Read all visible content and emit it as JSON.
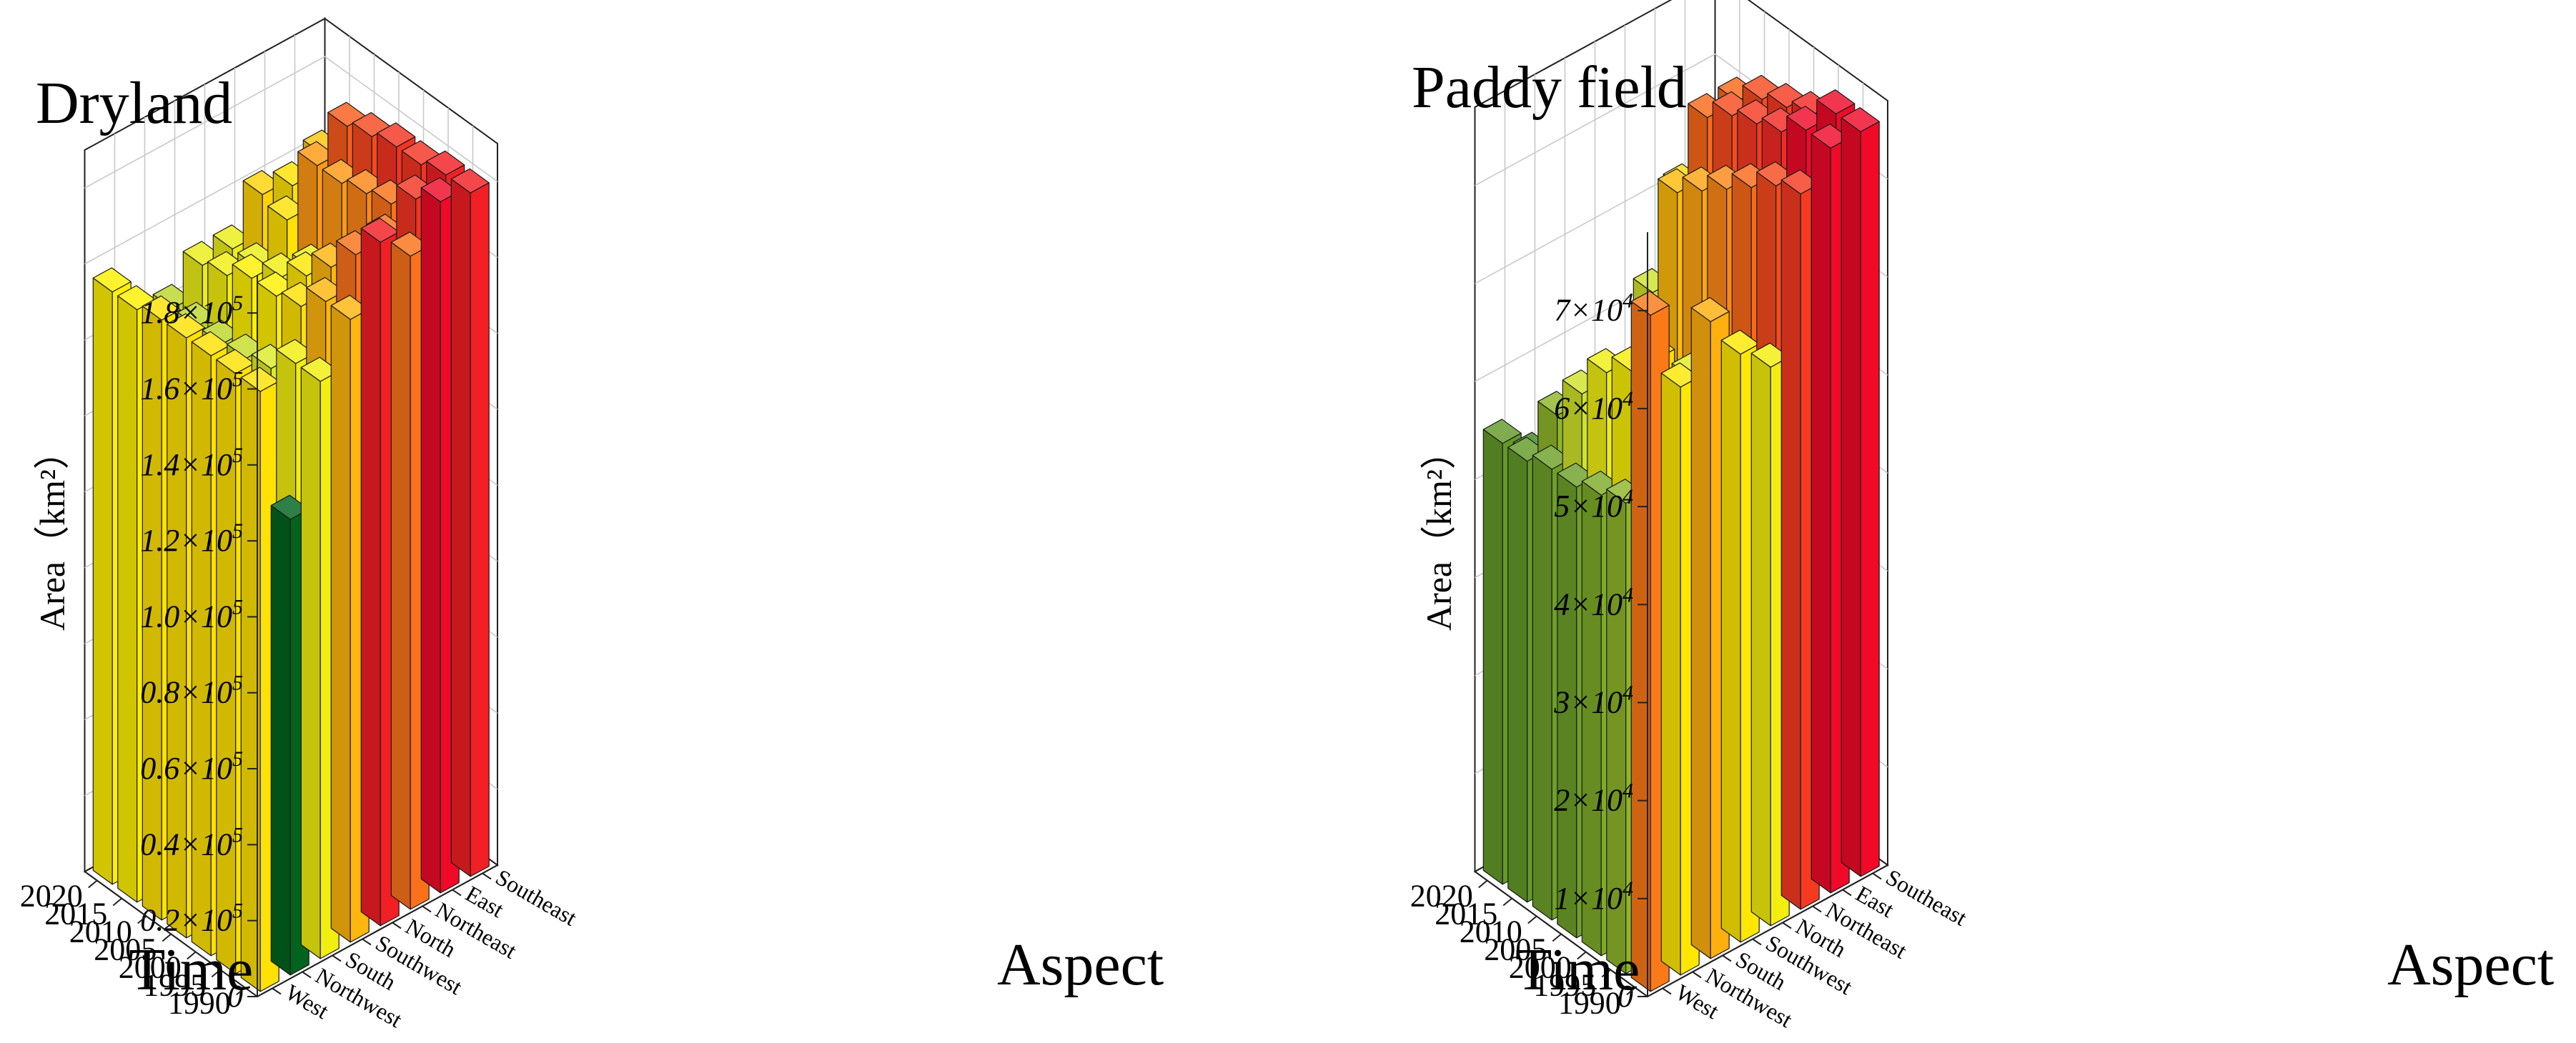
{
  "chart_data": [
    {
      "type": "bar3d",
      "title": "Dryland",
      "xlabel": "Time",
      "ylabel": "Aspect",
      "zlabel": "Area（km²）",
      "time": [
        "1990",
        "1995",
        "2000",
        "2005",
        "2010",
        "2015",
        "2020"
      ],
      "aspect": [
        "West",
        "Northwest",
        "South",
        "Southwest",
        "North",
        "Northeast",
        "East",
        "Southeast"
      ],
      "zlim": [
        0,
        190000
      ],
      "zticks": [
        {
          "value": 0,
          "base": "0",
          "exp": ""
        },
        {
          "value": 20000,
          "base": "0.2×10",
          "exp": "5"
        },
        {
          "value": 40000,
          "base": "0.4×10",
          "exp": "5"
        },
        {
          "value": 60000,
          "base": "0.6×10",
          "exp": "5"
        },
        {
          "value": 80000,
          "base": "0.8×10",
          "exp": "5"
        },
        {
          "value": 100000,
          "base": "1.0×10",
          "exp": "5"
        },
        {
          "value": 120000,
          "base": "1.2×10",
          "exp": "5"
        },
        {
          "value": 140000,
          "base": "1.4×10",
          "exp": "5"
        },
        {
          "value": 160000,
          "base": "1.6×10",
          "exp": "5"
        },
        {
          "value": 180000,
          "base": "1.8×10",
          "exp": "5"
        }
      ],
      "values": [
        [
          158000,
          158000,
          158000,
          158000,
          158000,
          156000,
          156000
        ],
        [
          120000,
          122000,
          124000,
          124000,
          124000,
          124000,
          124000
        ],
        [
          152000,
          152000,
          146000,
          144000,
          143000,
          143000,
          143000
        ],
        [
          164000,
          164000,
          158000,
          156000,
          156000,
          152000,
          150000
        ],
        [
          180000,
          172000,
          164000,
          157000,
          152000,
          150000,
          150000
        ],
        [
          172000,
          172000,
          158000,
          152000,
          150000,
          158000,
          160000
        ],
        [
          182000,
          178000,
          172000,
          170000,
          168000,
          168000,
          158000
        ],
        [
          180000,
          180000,
          178000,
          178000,
          176000,
          174000,
          162000
        ]
      ]
    },
    {
      "type": "bar3d",
      "title": "Paddy field",
      "xlabel": "Time",
      "ylabel": "Aspect",
      "zlabel": "Area（km²）",
      "time": [
        "1990",
        "1995",
        "2000",
        "2005",
        "2010",
        "2015",
        "2020"
      ],
      "aspect": [
        "West",
        "Northwest",
        "South",
        "Southwest",
        "North",
        "Northeast",
        "East",
        "Southeast"
      ],
      "zlim": [
        0,
        78000
      ],
      "zticks": [
        {
          "value": 0,
          "base": "0",
          "exp": ""
        },
        {
          "value": 10000,
          "base": "1×10",
          "exp": "4"
        },
        {
          "value": 20000,
          "base": "2×10",
          "exp": "4"
        },
        {
          "value": 30000,
          "base": "3×10",
          "exp": "4"
        },
        {
          "value": 40000,
          "base": "4×10",
          "exp": "4"
        },
        {
          "value": 50000,
          "base": "5×10",
          "exp": "4"
        },
        {
          "value": 60000,
          "base": "6×10",
          "exp": "4"
        },
        {
          "value": 70000,
          "base": "7×10",
          "exp": "4"
        }
      ],
      "values": [
        [
          69000,
          48000,
          47000,
          46000,
          46000,
          45000,
          45000
        ],
        [
          60000,
          61000,
          58000,
          56000,
          52000,
          48000,
          42000
        ],
        [
          65000,
          56000,
          46000,
          42000,
          38000,
          38000,
          36000
        ],
        [
          60000,
          58000,
          54000,
          52000,
          48000,
          44000,
          42000
        ],
        [
          57000,
          56000,
          54000,
          50000,
          48000,
          44000,
          42000
        ],
        [
          73000,
          72000,
          70000,
          68000,
          66000,
          64000,
          52000
        ],
        [
          76000,
          76000,
          74000,
          73000,
          72000,
          70000,
          61000
        ],
        [
          76000,
          76000,
          74000,
          73000,
          72000,
          70000,
          60000
        ]
      ]
    }
  ]
}
